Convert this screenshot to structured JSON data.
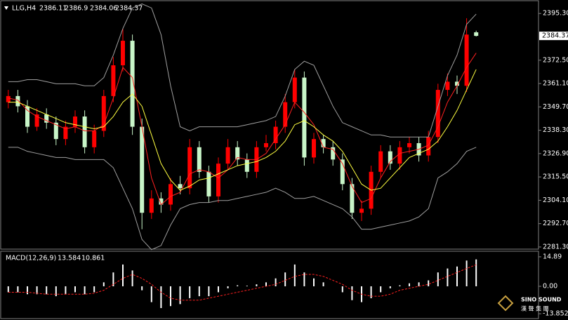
{
  "chart_data": [
    {
      "type": "candlestick",
      "title": "LLG,H4",
      "up_color": "#ff0000",
      "down_color": "#c8f5c8",
      "open": [
        2352,
        2355,
        2350,
        2340,
        2346,
        2342,
        2334,
        2340,
        2345,
        2330,
        2338,
        2355,
        2370,
        2382,
        2340,
        2298,
        2305,
        2302,
        2312,
        2310,
        2330,
        2318,
        2306,
        2322,
        2330,
        2324,
        2318,
        2330,
        2332,
        2340,
        2352,
        2364,
        2325,
        2334,
        2330,
        2324,
        2312,
        2298,
        2300,
        2318,
        2328,
        2322,
        2330,
        2332,
        2326,
        2335,
        2358,
        2362,
        2360,
        2386.11
      ],
      "high": [
        2358,
        2358,
        2353,
        2349,
        2349,
        2345,
        2343,
        2348,
        2348,
        2341,
        2358,
        2374,
        2388,
        2385,
        2344,
        2309,
        2308,
        2315,
        2316,
        2334,
        2333,
        2321,
        2325,
        2334,
        2333,
        2327,
        2333,
        2336,
        2343,
        2356,
        2368,
        2367,
        2337,
        2336,
        2333,
        2327,
        2315,
        2304,
        2321,
        2331,
        2331,
        2333,
        2335,
        2335,
        2338,
        2361,
        2366,
        2365,
        2393,
        2386.9
      ],
      "low": [
        2349,
        2347,
        2337,
        2338,
        2339,
        2331,
        2331,
        2337,
        2327,
        2327,
        2335,
        2352,
        2367,
        2336,
        2290,
        2295,
        2298,
        2299,
        2307,
        2307,
        2315,
        2303,
        2303,
        2319,
        2321,
        2315,
        2315,
        2328,
        2329,
        2337,
        2349,
        2321,
        2322,
        2327,
        2321,
        2309,
        2295,
        2294,
        2297,
        2315,
        2319,
        2319,
        2327,
        2323,
        2323,
        2332,
        2355,
        2356,
        2357,
        2384.06
      ],
      "close": [
        2355,
        2350,
        2340,
        2346,
        2342,
        2334,
        2340,
        2345,
        2330,
        2338,
        2355,
        2370,
        2382,
        2340,
        2298,
        2305,
        2302,
        2312,
        2310,
        2330,
        2318,
        2306,
        2322,
        2330,
        2324,
        2318,
        2330,
        2332,
        2340,
        2352,
        2364,
        2325,
        2334,
        2330,
        2324,
        2312,
        2298,
        2300,
        2318,
        2328,
        2322,
        2330,
        2332,
        2326,
        2335,
        2358,
        2362,
        2360,
        2385,
        2384.37
      ],
      "series": [
        {
          "color": "#ff2020",
          "values": [
            2354,
            2353,
            2348,
            2345,
            2343,
            2341,
            2339,
            2340,
            2338,
            2338,
            2341,
            2354,
            2369,
            2364,
            2340,
            2315,
            2302,
            2306,
            2308,
            2317,
            2319,
            2318,
            2315,
            2319,
            2325,
            2324,
            2324,
            2327,
            2334,
            2341,
            2352,
            2347,
            2341,
            2330,
            2329,
            2322,
            2311,
            2303,
            2305,
            2315,
            2323,
            2327,
            2328,
            2329,
            2331,
            2340,
            2352,
            2360,
            2369,
            2376
          ]
        },
        {
          "color": "#ffff40",
          "values": [
            2352,
            2352,
            2350,
            2348,
            2346,
            2344,
            2342,
            2341,
            2340,
            2339,
            2340,
            2345,
            2352,
            2356,
            2350,
            2336,
            2322,
            2314,
            2309,
            2311,
            2314,
            2315,
            2317,
            2319,
            2321,
            2322,
            2323,
            2325,
            2328,
            2333,
            2341,
            2343,
            2340,
            2336,
            2333,
            2328,
            2320,
            2312,
            2309,
            2310,
            2315,
            2320,
            2325,
            2327,
            2329,
            2333,
            2340,
            2348,
            2358,
            2368
          ]
        },
        {
          "color": "#a0a0a0",
          "values": [
            2362,
            2362,
            2363,
            2363,
            2362,
            2361,
            2361,
            2361,
            2360,
            2360,
            2364,
            2375,
            2388,
            2398,
            2400,
            2398,
            2385,
            2360,
            2340,
            2338,
            2340,
            2340,
            2340,
            2340,
            2340,
            2341,
            2342,
            2343,
            2345,
            2355,
            2368,
            2372,
            2370,
            2360,
            2350,
            2342,
            2340,
            2338,
            2336,
            2336,
            2335,
            2335,
            2335,
            2335,
            2335,
            2350,
            2365,
            2375,
            2390,
            2395
          ]
        },
        {
          "color": "#a0a0a0",
          "values": [
            2330,
            2330,
            2328,
            2327,
            2326,
            2325,
            2325,
            2324,
            2324,
            2324,
            2324,
            2320,
            2310,
            2300,
            2285,
            2280,
            2282,
            2292,
            2300,
            2302,
            2303,
            2303,
            2304,
            2304,
            2305,
            2306,
            2307,
            2308,
            2310,
            2308,
            2305,
            2305,
            2306,
            2304,
            2302,
            2300,
            2296,
            2290,
            2290,
            2291,
            2292,
            2293,
            2294,
            2296,
            2300,
            2315,
            2318,
            2322,
            2328,
            2330
          ]
        }
      ],
      "ylim": [
        2280.6,
        2401.2
      ],
      "yticks": [
        {
          "value": 2395.3,
          "label": "2395.30"
        },
        {
          "value": 2372.5,
          "label": "2372.50"
        },
        {
          "value": 2361.1,
          "label": "2361.10"
        },
        {
          "value": 2349.7,
          "label": "2349.70"
        },
        {
          "value": 2338.3,
          "label": "2338.30"
        },
        {
          "value": 2326.9,
          "label": "2326.90"
        },
        {
          "value": 2315.5,
          "label": "2315.50"
        },
        {
          "value": 2304.1,
          "label": "2304.10"
        },
        {
          "value": 2292.7,
          "label": "2292.70"
        },
        {
          "value": 2281.3,
          "label": "2281.30"
        }
      ],
      "grid": false
    },
    {
      "type": "macd",
      "title": "MACD(12,26,9)",
      "histogram": {
        "color": "#ffffff",
        "values": [
          -3,
          -3,
          -4,
          -4,
          -4,
          -5,
          -4,
          -3,
          -4,
          -3,
          2,
          7,
          11,
          8,
          -2,
          -8,
          -11,
          -10,
          -9,
          -6,
          -5,
          -5,
          -3,
          -1,
          0.5,
          0.3,
          1,
          2,
          4,
          7,
          11,
          7,
          4,
          2,
          0,
          -3,
          -7,
          -8,
          -6,
          -3,
          -1,
          0.5,
          1.5,
          2,
          3,
          7,
          9,
          10,
          13,
          13.584
        ]
      },
      "signal": {
        "color": "#ff2020",
        "values": [
          -3,
          -3,
          -3,
          -3.5,
          -4,
          -4,
          -4,
          -4,
          -4,
          -3.5,
          -2,
          1,
          4,
          6,
          4,
          1,
          -3,
          -6,
          -7,
          -7,
          -7,
          -6,
          -5,
          -4,
          -3,
          -2,
          -1,
          0,
          1,
          3,
          5,
          6,
          6,
          5,
          3,
          1,
          -2,
          -4,
          -5,
          -5,
          -4,
          -2,
          -1,
          0,
          1,
          3,
          5,
          7,
          9,
          10.861
        ]
      },
      "ylim": [
        -15.6,
        17
      ],
      "yticks": [
        14.89,
        {
          "value": 0,
          "label": "0.00"
        },
        -13.852
      ]
    }
  ],
  "watermark": {
    "brand": "SINO SOUND",
    "subtitle": "漢 聲 集 團"
  }
}
